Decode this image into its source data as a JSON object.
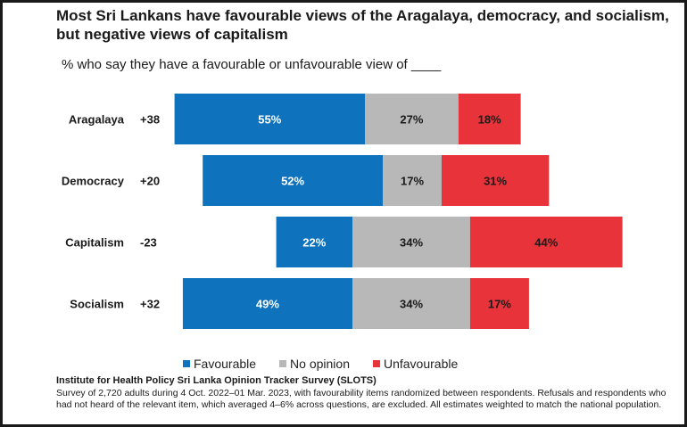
{
  "title": "Most Sri Lankans have favourable views of the Aragalaya, democracy, and socialism, but negative views of capitalism",
  "subtitle": "% who say they have a favourable or unfavourable view of ____",
  "colors": {
    "favourable": "#0f72bd",
    "no_opinion": "#b8b8b8",
    "unfavourable": "#e8333a"
  },
  "chart_data": {
    "type": "bar",
    "orientation": "horizontal-stacked",
    "categories": [
      "Aragalaya",
      "Democracy",
      "Capitalism",
      "Socialism"
    ],
    "net": [
      "+38",
      "+20",
      "-23",
      "+32"
    ],
    "series": [
      {
        "name": "Favourable",
        "values": [
          55,
          52,
          22,
          49
        ],
        "labels": [
          "55%",
          "52%",
          "22%",
          "49%"
        ]
      },
      {
        "name": "No opinion",
        "values": [
          27,
          17,
          34,
          34
        ],
        "labels": [
          "27%",
          "17%",
          "34%",
          "34%"
        ]
      },
      {
        "name": "Unfavourable",
        "values": [
          18,
          31,
          44,
          17
        ],
        "labels": [
          "18%",
          "31%",
          "44%",
          "17%"
        ]
      }
    ],
    "legend": [
      "Favourable",
      "No opinion",
      "Unfavourable"
    ],
    "legend_position": "bottom"
  },
  "source": "Institute for Health Policy Sri Lanka Opinion Tracker Survey (SLOTS)",
  "note": "Survey of 2,720 adults during 4 Oct. 2022–01 Mar. 2023, with favourability items randomized between respondents. Refusals and respondents who had not heard of the relevant item, which averaged 4–6% across questions, are excluded.  All estimates weighted to match the national population."
}
